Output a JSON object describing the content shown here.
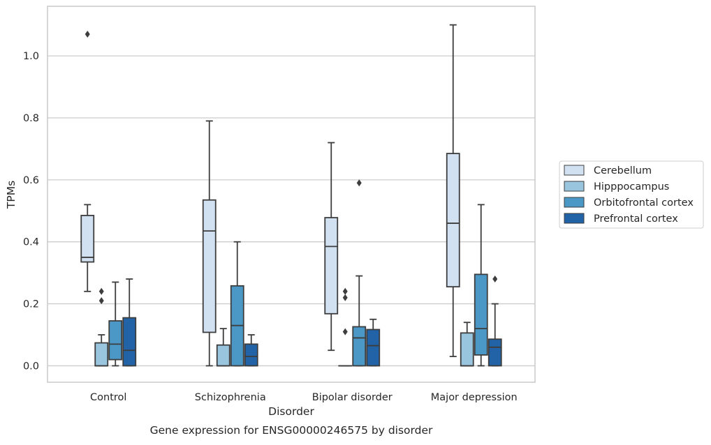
{
  "caption": "Gene expression for ENSG00000246575 by disorder",
  "chart_data": {
    "type": "box",
    "title": "",
    "xlabel": "Disorder",
    "ylabel": "TPMs",
    "ylim": [
      -0.053,
      1.16
    ],
    "yticks": [
      0.0,
      0.2,
      0.4,
      0.6,
      0.8,
      1.0
    ],
    "ytick_labels": [
      "0.0",
      "0.2",
      "0.4",
      "0.6",
      "0.8",
      "1.0"
    ],
    "grid": "horizontal",
    "legend_placement": "outside-right",
    "categories": [
      "Control",
      "Schizophrenia",
      "Bipolar disorder",
      "Major depression"
    ],
    "series": [
      {
        "name": "Cerebellum",
        "color": "#d1e1f1",
        "boxes": [
          {
            "whislo": 0.24,
            "q1": 0.335,
            "med": 0.35,
            "q3": 0.485,
            "whishi": 0.52,
            "fliers": [
              1.07
            ]
          },
          {
            "whislo": 0.0,
            "q1": 0.108,
            "med": 0.435,
            "q3": 0.535,
            "whishi": 0.79,
            "fliers": []
          },
          {
            "whislo": 0.05,
            "q1": 0.168,
            "med": 0.385,
            "q3": 0.478,
            "whishi": 0.72,
            "fliers": []
          },
          {
            "whislo": 0.03,
            "q1": 0.255,
            "med": 0.46,
            "q3": 0.685,
            "whishi": 1.1,
            "fliers": []
          }
        ]
      },
      {
        "name": "Hipppocampus",
        "color": "#99c5df",
        "boxes": [
          {
            "whislo": 0.0,
            "q1": 0.0,
            "med": 0.0,
            "q3": 0.074,
            "whishi": 0.1,
            "fliers": [
              0.21,
              0.24
            ]
          },
          {
            "whislo": 0.0,
            "q1": 0.0,
            "med": 0.0,
            "q3": 0.067,
            "whishi": 0.12,
            "fliers": []
          },
          {
            "whislo": 0.0,
            "q1": 0.0,
            "med": 0.0,
            "q3": 0.0,
            "whishi": 0.0,
            "fliers": [
              0.11,
              0.22,
              0.24
            ]
          },
          {
            "whislo": 0.0,
            "q1": 0.0,
            "med": 0.0,
            "q3": 0.106,
            "whishi": 0.14,
            "fliers": []
          }
        ]
      },
      {
        "name": "Orbitofrontal cortex",
        "color": "#4b98c7",
        "boxes": [
          {
            "whislo": 0.0,
            "q1": 0.02,
            "med": 0.07,
            "q3": 0.145,
            "whishi": 0.27,
            "fliers": []
          },
          {
            "whislo": 0.0,
            "q1": 0.0,
            "med": 0.13,
            "q3": 0.258,
            "whishi": 0.4,
            "fliers": []
          },
          {
            "whislo": 0.0,
            "q1": 0.0,
            "med": 0.09,
            "q3": 0.126,
            "whishi": 0.29,
            "fliers": [
              0.59
            ]
          },
          {
            "whislo": 0.0,
            "q1": 0.035,
            "med": 0.12,
            "q3": 0.295,
            "whishi": 0.52,
            "fliers": []
          }
        ]
      },
      {
        "name": "Prefrontal cortex",
        "color": "#2163a6",
        "boxes": [
          {
            "whislo": 0.0,
            "q1": 0.0,
            "med": 0.05,
            "q3": 0.155,
            "whishi": 0.28,
            "fliers": []
          },
          {
            "whislo": 0.0,
            "q1": 0.0,
            "med": 0.03,
            "q3": 0.07,
            "whishi": 0.1,
            "fliers": []
          },
          {
            "whislo": 0.0,
            "q1": 0.0,
            "med": 0.065,
            "q3": 0.117,
            "whishi": 0.15,
            "fliers": []
          },
          {
            "whislo": 0.0,
            "q1": 0.0,
            "med": 0.06,
            "q3": 0.086,
            "whishi": 0.2,
            "fliers": [
              0.28
            ]
          }
        ]
      }
    ]
  }
}
